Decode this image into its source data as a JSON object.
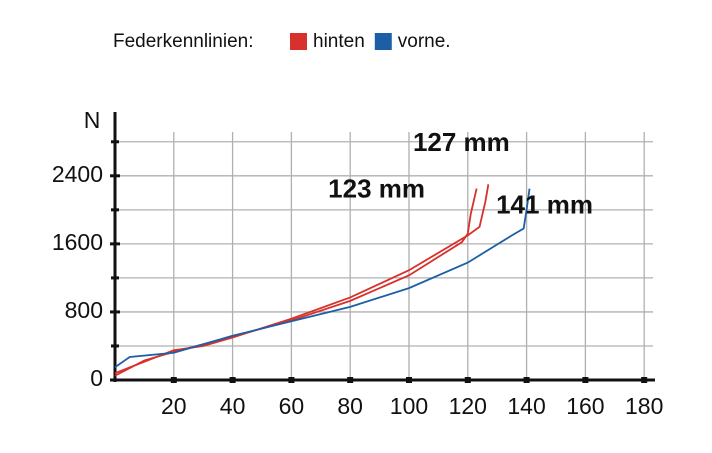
{
  "chart_data": {
    "type": "line",
    "title": "Federkennlinien:",
    "legend": [
      {
        "name": "hinten",
        "color": "#d8312b"
      },
      {
        "name": "vorne.",
        "color": "#1d5fa6"
      }
    ],
    "y_label": "N",
    "xlim": [
      0,
      183
    ],
    "ylim": [
      0,
      3150
    ],
    "xticks": [
      20,
      40,
      60,
      80,
      100,
      120,
      140,
      160,
      180
    ],
    "yticks": [
      0,
      800,
      1600,
      2400
    ],
    "y_minor_ticks": [
      400,
      1200,
      2000,
      2800
    ],
    "grid": true,
    "series": [
      {
        "name": "123 mm",
        "color": "#d8312b",
        "x": [
          0,
          10,
          20,
          30,
          40,
          60,
          80,
          100,
          118,
          120,
          121,
          123
        ],
        "values": [
          50,
          230,
          330,
          420,
          510,
          700,
          930,
          1230,
          1620,
          1720,
          1950,
          2250
        ]
      },
      {
        "name": "127 mm",
        "color": "#d8312b",
        "x": [
          0,
          20,
          30,
          40,
          60,
          80,
          100,
          120,
          124,
          126,
          127
        ],
        "values": [
          80,
          350,
          400,
          500,
          720,
          970,
          1290,
          1700,
          1800,
          2100,
          2300
        ]
      },
      {
        "name": "141 mm",
        "color": "#1d5fa6",
        "x": [
          0,
          5,
          20,
          40,
          60,
          80,
          100,
          120,
          135,
          139,
          140,
          141
        ],
        "values": [
          150,
          270,
          320,
          520,
          690,
          860,
          1080,
          1380,
          1700,
          1780,
          2000,
          2250
        ]
      }
    ]
  }
}
